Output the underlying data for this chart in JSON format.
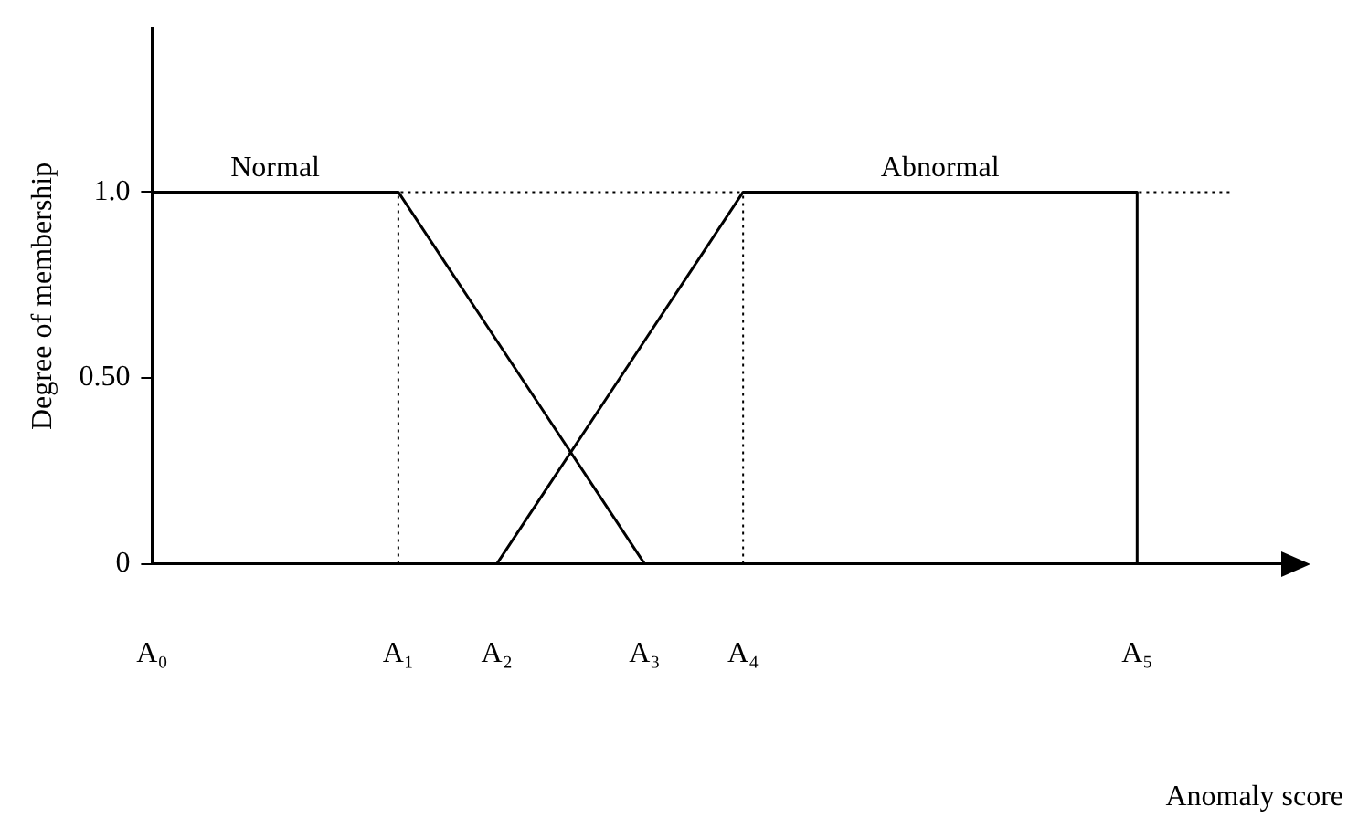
{
  "chart_data": {
    "type": "line",
    "xlabel": "Anomaly score",
    "ylabel": "Degree of membership",
    "categories": [
      "A₀",
      null,
      null,
      null,
      null,
      "A₁",
      null,
      "A₂",
      null,
      null,
      "A₃",
      null,
      "A₄",
      null,
      null,
      null,
      null,
      null,
      null,
      null,
      "A₅",
      null,
      null,
      null
    ],
    "series": [
      {
        "name": "Normal",
        "color": "#000000",
        "values": [
          1,
          1,
          1,
          1,
          1,
          1,
          0.8,
          0.6,
          0.4,
          0.2,
          0,
          null,
          null,
          null,
          null,
          null,
          null,
          null,
          null,
          null,
          null,
          null,
          null,
          null
        ]
      },
      {
        "name": "Abnormal",
        "color": "#000000",
        "values": [
          null,
          null,
          null,
          null,
          null,
          null,
          null,
          0,
          0.2,
          0.4,
          0.6,
          0.8,
          1,
          1,
          1,
          1,
          1,
          1,
          1,
          1,
          1,
          null,
          null,
          null
        ]
      }
    ],
    "ylim": [
      0,
      1.44
    ],
    "yticks": [
      {
        "value": 0,
        "label": "0"
      },
      {
        "value": 0.5,
        "label": "0.50"
      },
      {
        "value": 1,
        "label": "1.0"
      }
    ],
    "ref_lines": [
      {
        "axis": "y",
        "value": 1,
        "line_style": "dotted",
        "color": "#000000"
      },
      {
        "axis": "x",
        "value": "A₁",
        "line_style": "dotted",
        "color": "#000000"
      },
      {
        "axis": "x",
        "value": "A₄",
        "line_style": "dotted",
        "color": "#000000"
      },
      {
        "axis": "x",
        "value": "A₅",
        "line_style": "solid",
        "color": "#000000"
      }
    ],
    "grid": false,
    "legend": false,
    "marker": "none",
    "line_style": "solid"
  }
}
